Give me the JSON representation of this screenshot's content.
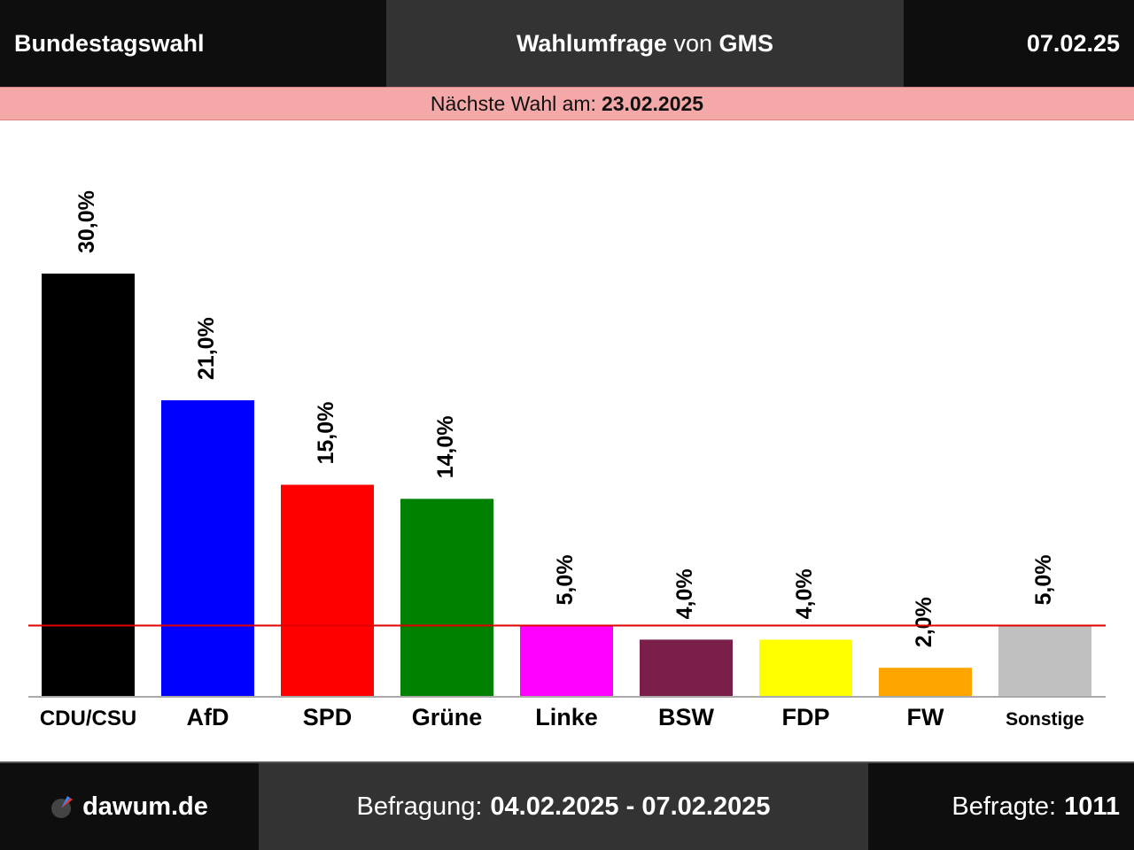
{
  "header": {
    "title": "Bundestagswahl",
    "poll_label": "Wahlumfrage",
    "poll_by": "von",
    "institute": "GMS",
    "date": "07.02.25"
  },
  "next_election": {
    "label": "Nächste Wahl am:",
    "date": "23.02.2025"
  },
  "chart_data": {
    "type": "bar",
    "categories": [
      "CDU/CSU",
      "AfD",
      "SPD",
      "Grüne",
      "Linke",
      "BSW",
      "FDP",
      "FW",
      "Sonstige"
    ],
    "values": [
      30.0,
      21.0,
      15.0,
      14.0,
      5.0,
      4.0,
      4.0,
      2.0,
      5.0
    ],
    "value_labels": [
      "30,0%",
      "21,0%",
      "15,0%",
      "14,0%",
      "5,0%",
      "4,0%",
      "4,0%",
      "2,0%",
      "5,0%"
    ],
    "colors": [
      "#000000",
      "#0000ff",
      "#ff0000",
      "#008000",
      "#ff00ff",
      "#7a1e4a",
      "#ffff00",
      "#ffa500",
      "#c0c0c0"
    ],
    "threshold": 5.0,
    "threshold_color": "#e00000",
    "ylim": [
      0,
      30
    ],
    "grid": false
  },
  "footer": {
    "brand": "dawum.de",
    "survey_label": "Befragung:",
    "survey_period": "04.02.2025 - 07.02.2025",
    "respondents_label": "Befragte:",
    "respondents": "1011"
  }
}
